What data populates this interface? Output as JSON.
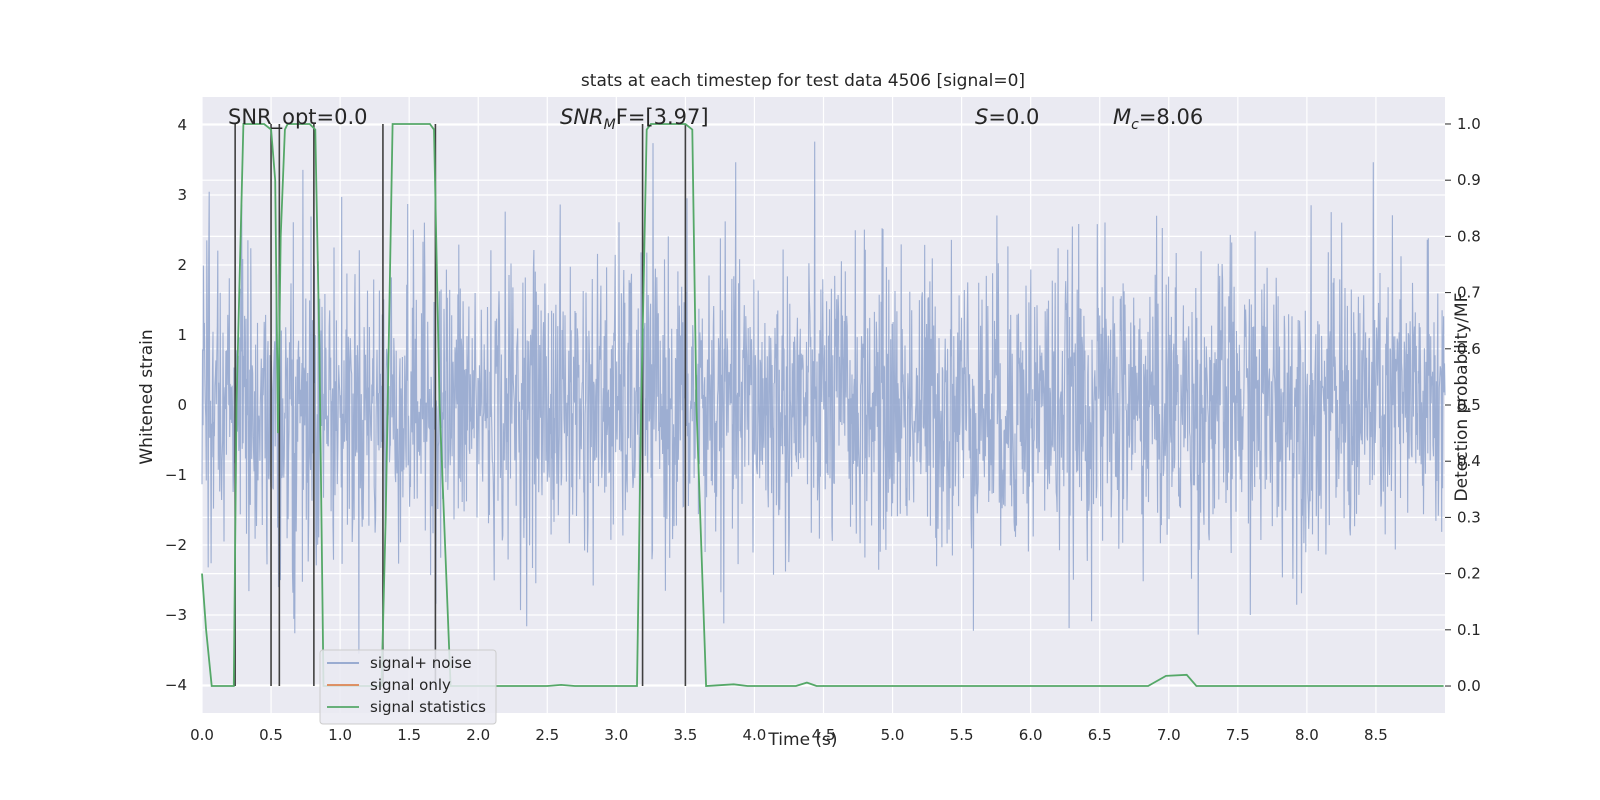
{
  "chart_data": {
    "type": "line",
    "title": "stats at each timestep for test data 4506 [signal=0]",
    "xlabel": "Time (s)",
    "ylabel_left": "Whitened strain",
    "ylabel_right": "Detection probability/MF",
    "xlim": [
      0.0,
      9.0
    ],
    "ylim_left": [
      -4.4,
      4.4
    ],
    "ylim_right": [
      -0.048,
      1.048
    ],
    "x_ticks": [
      "0.0",
      "0.5",
      "1.0",
      "1.5",
      "2.0",
      "2.5",
      "3.0",
      "3.5",
      "4.0",
      "4.5",
      "5.0",
      "5.5",
      "6.0",
      "6.5",
      "7.0",
      "7.5",
      "8.0",
      "8.5"
    ],
    "y_left_ticks": [
      "−4",
      "−3",
      "−2",
      "−1",
      "0",
      "1",
      "2",
      "3",
      "4"
    ],
    "y_right_ticks": [
      "0.0",
      "0.1",
      "0.2",
      "0.3",
      "0.4",
      "0.5",
      "0.6",
      "0.7",
      "0.8",
      "0.9",
      "1.0"
    ],
    "grid": true,
    "legend_position": "lower-left",
    "colors": {
      "background": "#eaeaf2",
      "grid": "#ffffff",
      "noise": "#8fa3cc",
      "signal_only": "#dd8452",
      "statistics": "#55a868",
      "marker_lines": "#404040"
    },
    "annotations": {
      "snr_opt": "SNR_opt=0.0",
      "snr_mf_base": "SNR",
      "snr_mf_sub": "M",
      "snr_mf_rest": "F=[3.97]",
      "s_base": "S",
      "s_rest": "=0.0",
      "mc_base": "M",
      "mc_sub": "c",
      "mc_rest": "=8.06"
    },
    "series": [
      {
        "name": "signal+ noise",
        "kind": "noise strain (approx. Gaussian, sigma ~ 1.0, peaks to about ±4)"
      },
      {
        "name": "signal only",
        "values": []
      },
      {
        "name": "signal statistics",
        "axis": "right",
        "x": [
          0.0,
          0.03,
          0.07,
          0.15,
          0.23,
          0.25,
          0.3,
          0.45,
          0.5,
          0.53,
          0.55,
          0.57,
          0.6,
          0.62,
          0.65,
          0.78,
          0.82,
          0.85,
          0.88,
          1.3,
          1.33,
          1.38,
          1.65,
          1.68,
          1.72,
          1.8,
          1.9,
          2.5,
          2.6,
          2.7,
          3.15,
          3.18,
          3.22,
          3.25,
          3.5,
          3.55,
          3.58,
          3.65,
          3.85,
          3.95,
          4.0,
          4.3,
          4.38,
          4.45,
          6.85,
          6.98,
          7.13,
          7.2,
          8.99
        ],
        "y": [
          0.2,
          0.1,
          0.0,
          0.0,
          0.0,
          0.5,
          1.0,
          1.0,
          0.99,
          0.9,
          0.45,
          0.8,
          0.99,
          1.0,
          1.0,
          1.0,
          0.99,
          0.6,
          0.0,
          0.0,
          0.3,
          1.0,
          1.0,
          0.99,
          0.5,
          0.0,
          0.0,
          0.0,
          0.002,
          0.0,
          0.0,
          0.5,
          0.99,
          1.0,
          1.0,
          0.99,
          0.5,
          0.0,
          0.003,
          0.0,
          0.0,
          0.0,
          0.006,
          0.0,
          0.0,
          0.018,
          0.02,
          0.0,
          0.0
        ]
      }
    ],
    "marker_lines_x": [
      0.24,
      0.5,
      0.56,
      0.81,
      1.31,
      1.69,
      3.19,
      3.5
    ],
    "legend": [
      "signal+ noise",
      "signal only",
      "signal statistics"
    ]
  }
}
